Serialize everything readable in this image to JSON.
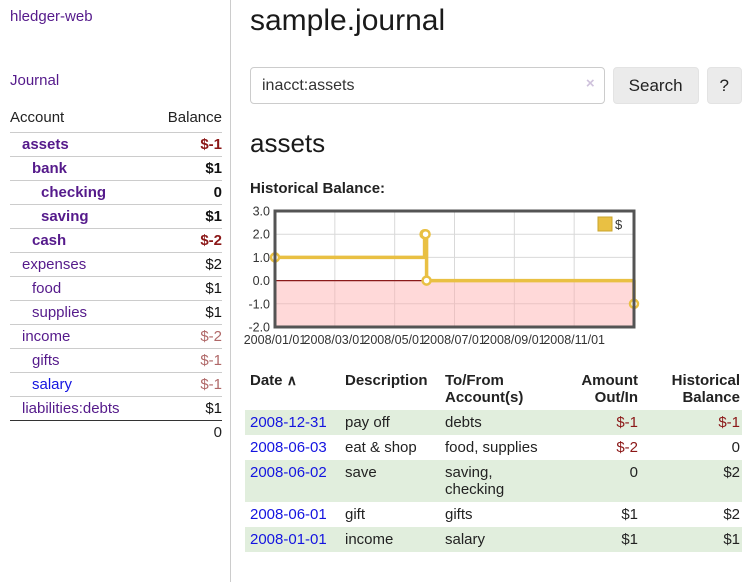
{
  "sidebar": {
    "brand": "hledger-web",
    "journal_label": "Journal",
    "accounts_table": {
      "headers": [
        "Account",
        "Balance"
      ],
      "rows": [
        {
          "account": "assets",
          "balance": "$-1",
          "level": 1,
          "bold": true,
          "balance_style": "neg",
          "link_style": "purple"
        },
        {
          "account": "bank",
          "balance": "$1",
          "level": 2,
          "bold": true,
          "balance_style": "",
          "link_style": "purple"
        },
        {
          "account": "checking",
          "balance": "0",
          "level": 3,
          "bold": true,
          "balance_style": "",
          "link_style": "purple"
        },
        {
          "account": "saving",
          "balance": "$1",
          "level": 3,
          "bold": true,
          "balance_style": "",
          "link_style": "purple"
        },
        {
          "account": "cash",
          "balance": "$-2",
          "level": 2,
          "bold": true,
          "balance_style": "neg",
          "link_style": "purple"
        },
        {
          "account": "expenses",
          "balance": "$2",
          "level": 1,
          "bold": false,
          "balance_style": "",
          "link_style": "purple"
        },
        {
          "account": "food",
          "balance": "$1",
          "level": 2,
          "bold": false,
          "balance_style": "",
          "link_style": "purple"
        },
        {
          "account": "supplies",
          "balance": "$1",
          "level": 2,
          "bold": false,
          "balance_style": "",
          "link_style": "purple"
        },
        {
          "account": "income",
          "balance": "$-2",
          "level": 1,
          "bold": false,
          "balance_style": "neglight",
          "link_style": "purple"
        },
        {
          "account": "gifts",
          "balance": "$-1",
          "level": 2,
          "bold": false,
          "balance_style": "neglight",
          "link_style": "purple"
        },
        {
          "account": "salary",
          "balance": "$-1",
          "level": 2,
          "bold": false,
          "balance_style": "neglight",
          "link_style": "blue"
        },
        {
          "account": "liabilities:debts",
          "balance": "$1",
          "level": 1,
          "bold": false,
          "balance_style": "",
          "link_style": "purple"
        }
      ],
      "total": "0"
    }
  },
  "header": {
    "title": "sample.journal"
  },
  "search": {
    "value": "inacct:assets",
    "clear_icon": "×",
    "button_label": "Search",
    "help_label": "?"
  },
  "account_page": {
    "title": "assets",
    "chart_label": "Historical Balance:"
  },
  "chart_data": {
    "type": "line",
    "title": "Historical Balance",
    "step": true,
    "series": [
      {
        "name": "$",
        "color": "#e9c043",
        "points": [
          {
            "date": "2008-01-01",
            "value": 1
          },
          {
            "date": "2008-06-01",
            "value": 2
          },
          {
            "date": "2008-06-02",
            "value": 2
          },
          {
            "date": "2008-06-03",
            "value": 0
          },
          {
            "date": "2008-12-31",
            "value": -1
          }
        ]
      }
    ],
    "x_range": [
      "2008-01-01",
      "2008-12-31"
    ],
    "x_ticks": [
      "2008/01/01",
      "2008/03/01",
      "2008/05/01",
      "2008/07/01",
      "2008/09/01",
      "2008/11/01"
    ],
    "y_ticks": [
      "3.0",
      "2.0",
      "1.0",
      "0.0",
      "-1.0",
      "-2.0"
    ],
    "ylim": [
      -2,
      3
    ],
    "grid": true,
    "grid_color": "#d9d9d9",
    "border_color": "#545454",
    "negative_fill": "rgba(255,170,170,0.45)",
    "zero_line_color": "#8b1a1a",
    "legend": {
      "label": "$",
      "position": "top-right",
      "swatch_color": "#e9c043"
    }
  },
  "register_table": {
    "headers": [
      {
        "label": "Date",
        "sorted": true,
        "align": "left"
      },
      {
        "label": "Description",
        "align": "left"
      },
      {
        "label": "To/From Account(s)",
        "align": "left"
      },
      {
        "label": "Amount Out/In",
        "align": "right"
      },
      {
        "label": "Historical Balance",
        "align": "right"
      }
    ],
    "sort_icon": "∧",
    "rows": [
      {
        "date": "2008-12-31",
        "description": "pay off",
        "accounts": "debts",
        "amount": "$-1",
        "amount_style": "neg",
        "balance": "$-1",
        "balance_style": "neg"
      },
      {
        "date": "2008-06-03",
        "description": "eat & shop",
        "accounts": "food, supplies",
        "amount": "$-2",
        "amount_style": "neg",
        "balance": "0",
        "balance_style": ""
      },
      {
        "date": "2008-06-02",
        "description": "save",
        "accounts": "saving, checking",
        "amount": "0",
        "amount_style": "",
        "balance": "$2",
        "balance_style": ""
      },
      {
        "date": "2008-06-01",
        "description": "gift",
        "accounts": "gifts",
        "amount": "$1",
        "amount_style": "",
        "balance": "$2",
        "balance_style": ""
      },
      {
        "date": "2008-01-01",
        "description": "income",
        "accounts": "salary",
        "amount": "$1",
        "amount_style": "",
        "balance": "$1",
        "balance_style": ""
      }
    ]
  }
}
